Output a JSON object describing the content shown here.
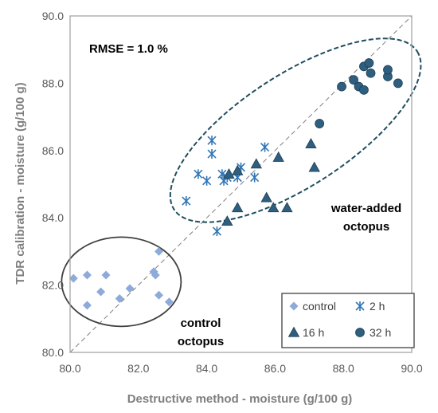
{
  "chart_data": {
    "type": "scatter",
    "xlabel": "Destructive method - moisture (g/100 g)",
    "ylabel": "TDR calibration - moisture (g/100 g)",
    "xlim": [
      80.0,
      90.0
    ],
    "ylim": [
      80.0,
      90.0
    ],
    "x_ticks": [
      "80.0",
      "82.0",
      "84.0",
      "86.0",
      "88.0",
      "90.0"
    ],
    "y_ticks": [
      "80.0",
      "82.0",
      "84.0",
      "86.0",
      "88.0",
      "90.0"
    ],
    "grid": false,
    "reference_line": "y = x",
    "legend_position": "bottom-right",
    "annotations": {
      "rmse": "RMSE = 1.0 %",
      "group_water_line1": "water-added",
      "group_water_line2": "octopus",
      "group_control_line1": "control",
      "group_control_line2": "octopus"
    },
    "series": [
      {
        "name": "control",
        "marker": "diamond",
        "color": "#8eaadb",
        "points": [
          [
            80.1,
            82.2
          ],
          [
            80.5,
            82.3
          ],
          [
            80.5,
            81.4
          ],
          [
            80.9,
            81.8
          ],
          [
            81.05,
            82.3
          ],
          [
            81.45,
            81.6
          ],
          [
            81.75,
            81.9
          ],
          [
            82.45,
            82.4
          ],
          [
            82.5,
            82.3
          ],
          [
            82.6,
            83.0
          ],
          [
            82.6,
            81.7
          ],
          [
            82.9,
            81.5
          ]
        ]
      },
      {
        "name": "2 h",
        "marker": "asterisk",
        "color": "#2e75b6",
        "points": [
          [
            83.4,
            84.5
          ],
          [
            83.75,
            85.3
          ],
          [
            84.0,
            85.1
          ],
          [
            84.15,
            85.9
          ],
          [
            84.15,
            86.3
          ],
          [
            84.3,
            83.6
          ],
          [
            84.45,
            85.3
          ],
          [
            84.5,
            85.1
          ],
          [
            84.6,
            85.2
          ],
          [
            84.9,
            85.2
          ],
          [
            85.0,
            85.5
          ],
          [
            85.4,
            85.2
          ],
          [
            85.7,
            86.1
          ]
        ]
      },
      {
        "name": "16 h",
        "marker": "triangle",
        "color": "#2f5f7f",
        "points": [
          [
            84.6,
            83.9
          ],
          [
            84.65,
            85.3
          ],
          [
            84.9,
            84.3
          ],
          [
            84.9,
            85.4
          ],
          [
            85.45,
            85.6
          ],
          [
            85.75,
            84.6
          ],
          [
            85.95,
            84.3
          ],
          [
            86.1,
            85.8
          ],
          [
            86.35,
            84.3
          ],
          [
            87.05,
            86.2
          ],
          [
            87.15,
            85.5
          ]
        ]
      },
      {
        "name": "32 h",
        "marker": "circle",
        "color": "#2f5f7f",
        "points": [
          [
            87.3,
            86.8
          ],
          [
            87.95,
            87.9
          ],
          [
            88.3,
            88.1
          ],
          [
            88.45,
            87.9
          ],
          [
            88.6,
            87.8
          ],
          [
            88.6,
            88.5
          ],
          [
            88.75,
            88.6
          ],
          [
            88.8,
            88.3
          ],
          [
            89.3,
            88.2
          ],
          [
            89.3,
            88.4
          ],
          [
            89.6,
            88.0
          ]
        ]
      }
    ]
  }
}
